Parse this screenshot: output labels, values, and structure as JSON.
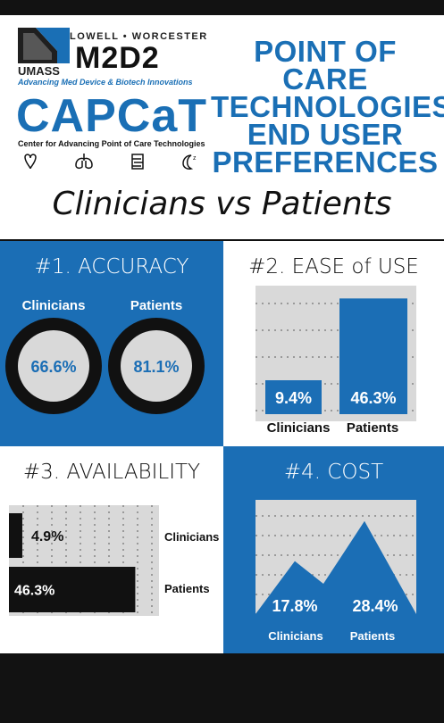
{
  "header": {
    "logo_top_line": "LOWELL • WORCESTER",
    "logo_umass": "UMASS",
    "logo_m2d2": "M2D2",
    "logo_m2d2_tagline": "Advancing Med Device & Biotech Innovations",
    "logo_capcat": "CAPCaT",
    "logo_capcat_tagline": "Center for Advancing Point of Care Technologies",
    "organ_icons": [
      "heart-icon",
      "lungs-icon",
      "intestine-icon",
      "sleep-moon-icon"
    ],
    "title_lines": [
      "POINT OF CARE",
      "TECHNOLOGIES",
      "END USER",
      "PREFERENCES"
    ],
    "subtitle": "Clinicians vs Patients"
  },
  "colors": {
    "blue": "#1b6eb5",
    "black": "#111111",
    "gray": "#d9d9d9",
    "white": "#ffffff"
  },
  "chart_data": [
    {
      "type": "pie",
      "title": "#1. ACCURACY",
      "categories": [
        "Clinicians",
        "Patients"
      ],
      "values": [
        66.6,
        81.1
      ],
      "value_labels": [
        "66.6%",
        "81.1%"
      ]
    },
    {
      "type": "bar",
      "title": "#2. EASE of USE",
      "categories": [
        "Clinicians",
        "Patients"
      ],
      "values": [
        9.4,
        46.3
      ],
      "value_labels": [
        "9.4%",
        "46.3%"
      ],
      "ylim": [
        0,
        50
      ]
    },
    {
      "type": "bar",
      "orientation": "horizontal",
      "title": "#3. AVAILABILITY",
      "categories": [
        "Clinicians",
        "Patients"
      ],
      "values": [
        4.9,
        46.3
      ],
      "value_labels": [
        "4.9%",
        "46.3%"
      ],
      "xlim": [
        0,
        55
      ]
    },
    {
      "type": "area",
      "title": "#4. COST",
      "categories": [
        "Clinicians",
        "Patients"
      ],
      "values": [
        17.8,
        28.4
      ],
      "value_labels": [
        "17.8%",
        "28.4%"
      ],
      "ylim": [
        0,
        34
      ]
    }
  ]
}
